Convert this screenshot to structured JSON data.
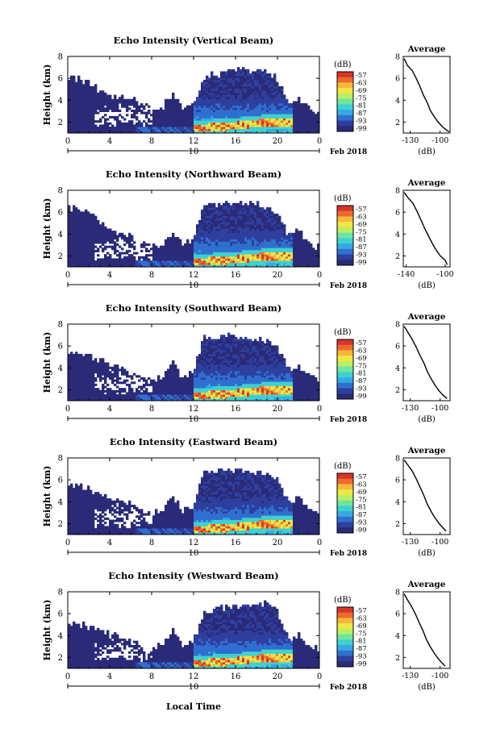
{
  "common": {
    "date_label": "10",
    "month_label": "Feb 2018",
    "ylabel": "Height (km)",
    "xticks": [
      "0",
      "4",
      "8",
      "12",
      "16",
      "20",
      "0"
    ],
    "yticks": [
      "2",
      "4",
      "6",
      "8"
    ],
    "colorbar_unit": "(dB)",
    "colorbar_ticks": [
      "-57",
      "-63",
      "-69",
      "-75",
      "-81",
      "-87",
      "-93",
      "-99"
    ],
    "avg_title": "Average",
    "avg_xlabel": "(dB)",
    "bottom_xlabel": "Local Time"
  },
  "colors": {
    "scale": [
      "#2a2a78",
      "#2e3f9e",
      "#2f6fd0",
      "#35a9e6",
      "#3fd1d0",
      "#6ee6a0",
      "#b8ef64",
      "#f2e642",
      "#f6b83a",
      "#ec6a2c",
      "#d8342a"
    ],
    "background_echo": "#2d2b6e"
  },
  "chart_data": [
    {
      "type": "heatmap",
      "title": "Echo Intensity (Vertical Beam)",
      "xlabel": "",
      "ylabel": "Height (km)",
      "xlim": [
        0,
        24
      ],
      "ylim": [
        1,
        8
      ],
      "color_range_db": [
        -99,
        -57
      ],
      "echo_top_km": [
        [
          0,
          6.2
        ],
        [
          2,
          5.6
        ],
        [
          4,
          4.4
        ],
        [
          6,
          4.2
        ],
        [
          7,
          3.7
        ],
        [
          8,
          3.2
        ],
        [
          9,
          3.3
        ],
        [
          10,
          4.6
        ],
        [
          11,
          3.2
        ],
        [
          12,
          3.6
        ],
        [
          13,
          6.2
        ],
        [
          15,
          6.4
        ],
        [
          17,
          6.8
        ],
        [
          19,
          6.6
        ],
        [
          20,
          6.0
        ],
        [
          21,
          3.8
        ],
        [
          22,
          4.2
        ],
        [
          23,
          3.4
        ],
        [
          24,
          2.8
        ]
      ],
      "bright_band_km": [
        [
          13,
          1.5
        ],
        [
          16,
          1.7
        ],
        [
          19,
          2.0
        ],
        [
          21,
          2.0
        ]
      ],
      "average_profile": {
        "title": "Average",
        "xlabel": "(dB)",
        "xticks": [
          "-130",
          "-100"
        ],
        "yticks": [
          "2",
          "4",
          "6",
          "8"
        ],
        "xlim": [
          -137,
          -90
        ],
        "ylim": [
          1,
          8
        ],
        "points": [
          [
            -136,
            7.8
          ],
          [
            -133,
            7.2
          ],
          [
            -128,
            6.7
          ],
          [
            -124,
            6.0
          ],
          [
            -120,
            5.2
          ],
          [
            -117,
            4.5
          ],
          [
            -113,
            3.8
          ],
          [
            -110,
            3.1
          ],
          [
            -106,
            2.5
          ],
          [
            -102,
            2.0
          ],
          [
            -98,
            1.6
          ],
          [
            -94,
            1.3
          ],
          [
            -91,
            1.1
          ]
        ]
      }
    },
    {
      "type": "heatmap",
      "title": "Echo Intensity (Northward Beam)",
      "xlabel": "",
      "ylabel": "Height (km)",
      "xlim": [
        0,
        24
      ],
      "ylim": [
        1,
        8
      ],
      "color_range_db": [
        -99,
        -57
      ],
      "echo_top_km": [
        [
          0,
          6.5
        ],
        [
          2,
          6.0
        ],
        [
          4,
          4.4
        ],
        [
          6,
          3.7
        ],
        [
          7,
          3.3
        ],
        [
          8,
          2.8
        ],
        [
          9,
          3.0
        ],
        [
          10,
          4.3
        ],
        [
          11,
          3.0
        ],
        [
          12,
          3.6
        ],
        [
          13,
          6.5
        ],
        [
          15,
          6.8
        ],
        [
          17,
          6.9
        ],
        [
          19,
          6.5
        ],
        [
          20,
          6.0
        ],
        [
          21,
          3.9
        ],
        [
          22,
          4.5
        ],
        [
          23,
          3.2
        ],
        [
          24,
          2.8
        ]
      ],
      "bright_band_km": [
        [
          13,
          1.5
        ],
        [
          16,
          1.7
        ],
        [
          19,
          2.0
        ],
        [
          21,
          2.0
        ]
      ],
      "average_profile": {
        "title": "Average",
        "xlabel": "(dB)",
        "xticks": [
          "-140",
          "-100"
        ],
        "yticks": [
          "2",
          "4",
          "6",
          "8"
        ],
        "xlim": [
          -143,
          -95
        ],
        "ylim": [
          1,
          8
        ],
        "points": [
          [
            -142,
            7.8
          ],
          [
            -138,
            7.3
          ],
          [
            -133,
            6.8
          ],
          [
            -129,
            6.1
          ],
          [
            -125,
            5.3
          ],
          [
            -121,
            4.5
          ],
          [
            -117,
            3.8
          ],
          [
            -113,
            3.1
          ],
          [
            -109,
            2.5
          ],
          [
            -105,
            2.0
          ],
          [
            -100,
            1.6
          ],
          [
            -98,
            1.2
          ]
        ]
      }
    },
    {
      "type": "heatmap",
      "title": "Echo Intensity (Southward Beam)",
      "xlabel": "",
      "ylabel": "Height (km)",
      "xlim": [
        0,
        24
      ],
      "ylim": [
        1,
        8
      ],
      "color_range_db": [
        -99,
        -57
      ],
      "echo_top_km": [
        [
          0,
          5.4
        ],
        [
          2,
          5.0
        ],
        [
          4,
          4.3
        ],
        [
          6,
          3.6
        ],
        [
          7,
          3.2
        ],
        [
          8,
          2.9
        ],
        [
          9,
          3.1
        ],
        [
          10,
          4.5
        ],
        [
          11,
          3.0
        ],
        [
          12,
          3.8
        ],
        [
          13,
          6.8
        ],
        [
          15,
          6.9
        ],
        [
          17,
          6.8
        ],
        [
          19,
          6.6
        ],
        [
          20,
          6.0
        ],
        [
          21,
          3.8
        ],
        [
          22,
          4.2
        ],
        [
          23,
          3.2
        ],
        [
          24,
          2.8
        ]
      ],
      "bright_band_km": [
        [
          13,
          1.5
        ],
        [
          16,
          1.7
        ],
        [
          19,
          2.0
        ],
        [
          21,
          2.0
        ]
      ],
      "average_profile": {
        "title": "Average",
        "xlabel": "(dB)",
        "xticks": [
          "-130",
          "-100"
        ],
        "yticks": [
          "2",
          "4",
          "6",
          "8"
        ],
        "xlim": [
          -137,
          -90
        ],
        "ylim": [
          1,
          8
        ],
        "points": [
          [
            -136,
            7.8
          ],
          [
            -132,
            7.2
          ],
          [
            -128,
            6.6
          ],
          [
            -124,
            5.9
          ],
          [
            -120,
            5.1
          ],
          [
            -116,
            4.4
          ],
          [
            -113,
            3.7
          ],
          [
            -109,
            3.0
          ],
          [
            -105,
            2.4
          ],
          [
            -101,
            1.9
          ],
          [
            -97,
            1.5
          ],
          [
            -93,
            1.2
          ]
        ]
      }
    },
    {
      "type": "heatmap",
      "title": "Echo Intensity (Eastward Beam)",
      "xlabel": "",
      "ylabel": "Height (km)",
      "xlim": [
        0,
        24
      ],
      "ylim": [
        1,
        8
      ],
      "color_range_db": [
        -99,
        -57
      ],
      "echo_top_km": [
        [
          0,
          5.6
        ],
        [
          2,
          5.2
        ],
        [
          4,
          4.4
        ],
        [
          6,
          3.9
        ],
        [
          7,
          3.4
        ],
        [
          8,
          3.0
        ],
        [
          9,
          3.2
        ],
        [
          10,
          4.6
        ],
        [
          11,
          3.1
        ],
        [
          12,
          3.6
        ],
        [
          13,
          6.7
        ],
        [
          15,
          6.9
        ],
        [
          17,
          6.8
        ],
        [
          19,
          6.7
        ],
        [
          20,
          6.1
        ],
        [
          21,
          4.0
        ],
        [
          22,
          4.4
        ],
        [
          23,
          3.4
        ],
        [
          24,
          2.8
        ]
      ],
      "bright_band_km": [
        [
          13,
          1.5
        ],
        [
          16,
          1.7
        ],
        [
          19,
          2.0
        ],
        [
          21,
          2.0
        ]
      ],
      "average_profile": {
        "title": "Average",
        "xlabel": "(dB)",
        "xticks": [
          "-130",
          "-100"
        ],
        "yticks": [
          "2",
          "4",
          "6",
          "8"
        ],
        "xlim": [
          -137,
          -90
        ],
        "ylim": [
          1,
          8
        ],
        "points": [
          [
            -136,
            7.8
          ],
          [
            -132,
            7.3
          ],
          [
            -128,
            6.8
          ],
          [
            -124,
            6.1
          ],
          [
            -120,
            5.3
          ],
          [
            -116,
            4.5
          ],
          [
            -113,
            3.8
          ],
          [
            -109,
            3.1
          ],
          [
            -105,
            2.5
          ],
          [
            -101,
            2.0
          ],
          [
            -97,
            1.6
          ],
          [
            -94,
            1.3
          ]
        ]
      }
    },
    {
      "type": "heatmap",
      "title": "Echo Intensity (Westward Beam)",
      "xlabel": "Local Time",
      "ylabel": "Height (km)",
      "xlim": [
        0,
        24
      ],
      "ylim": [
        1,
        8
      ],
      "color_range_db": [
        -99,
        -57
      ],
      "echo_top_km": [
        [
          0,
          5.2
        ],
        [
          2,
          4.8
        ],
        [
          4,
          4.2
        ],
        [
          6,
          3.7
        ],
        [
          7,
          3.2
        ],
        [
          8,
          2.9
        ],
        [
          9,
          3.1
        ],
        [
          10,
          4.5
        ],
        [
          11,
          3.0
        ],
        [
          12,
          3.6
        ],
        [
          13,
          6.2
        ],
        [
          15,
          6.6
        ],
        [
          17,
          6.9
        ],
        [
          19,
          7.0
        ],
        [
          20,
          6.2
        ],
        [
          21,
          3.8
        ],
        [
          22,
          4.0
        ],
        [
          23,
          3.2
        ],
        [
          24,
          2.7
        ]
      ],
      "bright_band_km": [
        [
          13,
          1.5
        ],
        [
          16,
          1.7
        ],
        [
          19,
          2.0
        ],
        [
          21,
          2.0
        ]
      ],
      "average_profile": {
        "title": "Average",
        "xlabel": "(dB)",
        "xticks": [
          "-130",
          "-100"
        ],
        "yticks": [
          "2",
          "4",
          "6",
          "8"
        ],
        "xlim": [
          -137,
          -90
        ],
        "ylim": [
          1,
          8
        ],
        "points": [
          [
            -136,
            7.8
          ],
          [
            -133,
            7.3
          ],
          [
            -129,
            6.7
          ],
          [
            -125,
            6.0
          ],
          [
            -121,
            5.2
          ],
          [
            -117,
            4.4
          ],
          [
            -114,
            3.7
          ],
          [
            -110,
            3.0
          ],
          [
            -106,
            2.4
          ],
          [
            -102,
            1.9
          ],
          [
            -98,
            1.5
          ],
          [
            -95,
            1.2
          ]
        ]
      }
    }
  ]
}
